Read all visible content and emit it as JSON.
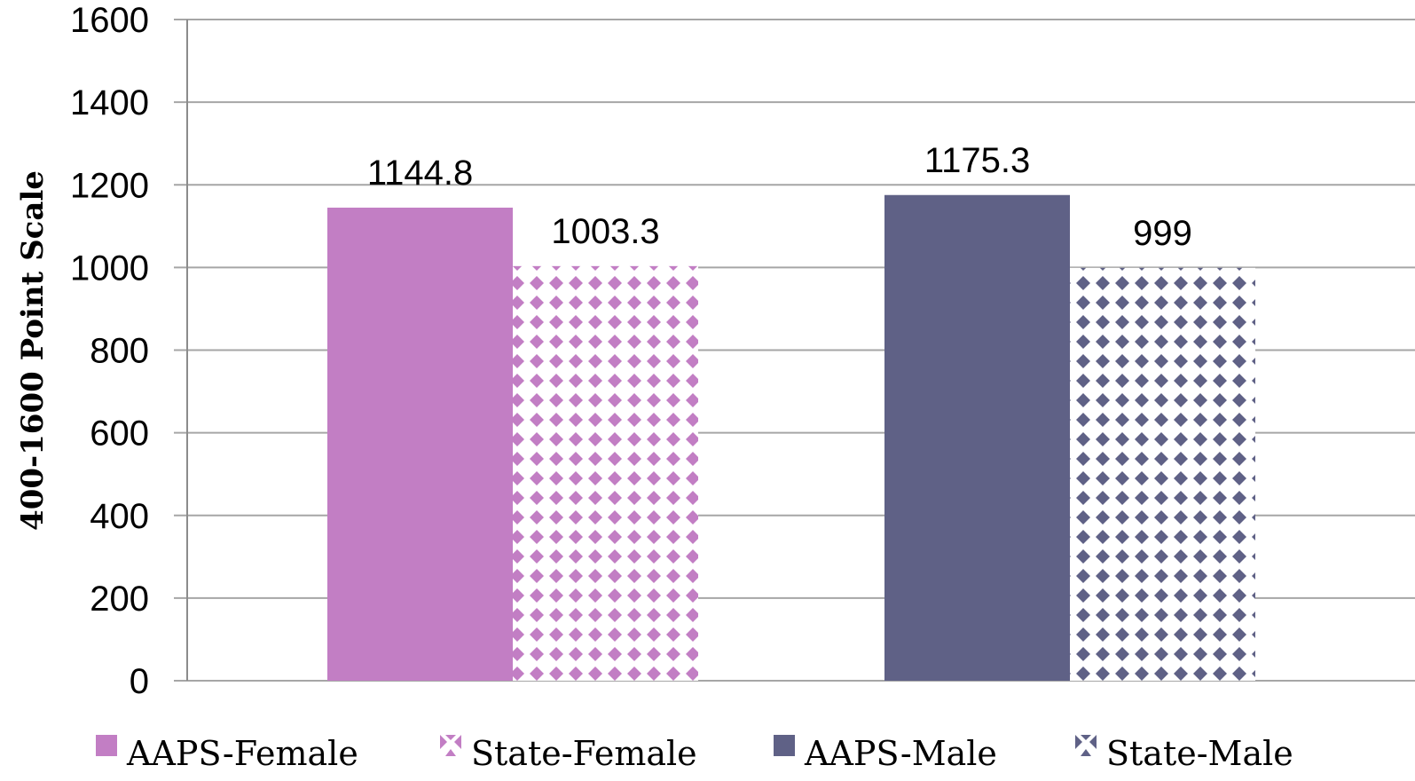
{
  "chart_data": {
    "type": "bar",
    "title": "",
    "xlabel": "",
    "ylabel": "400-1600 Point Scale",
    "ylim": [
      0,
      1600
    ],
    "yticks": [
      0,
      200,
      400,
      600,
      800,
      1000,
      1200,
      1400,
      1600
    ],
    "grid": true,
    "legend_position": "bottom",
    "groups": 2,
    "series": [
      {
        "name": "AAPS-Female",
        "color": "#c27ec4",
        "pattern": "solid",
        "group": 0,
        "value": 1144.8,
        "label": "1144.8"
      },
      {
        "name": "State-Female",
        "color": "#c27ec4",
        "pattern": "diamond",
        "group": 0,
        "value": 1003.3,
        "label": "1003.3"
      },
      {
        "name": "AAPS-Male",
        "color": "#5f6186",
        "pattern": "solid",
        "group": 1,
        "value": 1175.3,
        "label": "1175.3"
      },
      {
        "name": "State-Male",
        "color": "#5f6186",
        "pattern": "diamond",
        "group": 1,
        "value": 999,
        "label": "999"
      }
    ]
  }
}
